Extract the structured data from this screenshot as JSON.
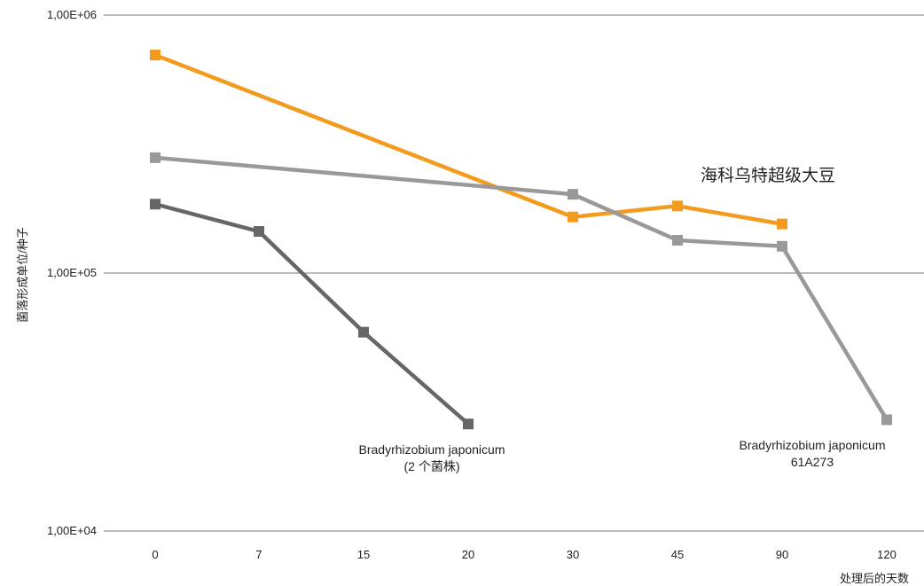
{
  "chart_data": {
    "type": "line",
    "y_scale": "log",
    "ylim": [
      10000,
      1000000
    ],
    "xlabel": "处理后的天数",
    "ylabel": "菌落形成单位/种子",
    "y_ticks": [
      "1,00E+04",
      "1,00E+05",
      "1,00E+06"
    ],
    "categories": [
      "0",
      "7",
      "15",
      "20",
      "30",
      "45",
      "90",
      "120"
    ],
    "series": [
      {
        "name": "海科乌特超级大豆",
        "color": "#F39B1E",
        "values": [
          700000,
          null,
          null,
          null,
          165000,
          182000,
          155000,
          null
        ]
      },
      {
        "name": "Bradyrhizobium japonicum 61A273",
        "color": "#999999",
        "values": [
          280000,
          null,
          null,
          null,
          202000,
          134000,
          127000,
          27000
        ]
      },
      {
        "name": "Bradyrhizobium japonicum (2 个菌株)",
        "color": "#666666",
        "values": [
          185000,
          145000,
          59000,
          26000,
          null,
          null,
          null,
          null
        ]
      }
    ],
    "annotations": {
      "orange": "海科乌特超级大豆",
      "dark_line1": "Bradyrhizobium japonicum",
      "dark_line2": "(2 个菌株)",
      "light_line1": "Bradyrhizobium japonicum",
      "light_line2": "61A273"
    },
    "grid": true,
    "legend": "none"
  }
}
